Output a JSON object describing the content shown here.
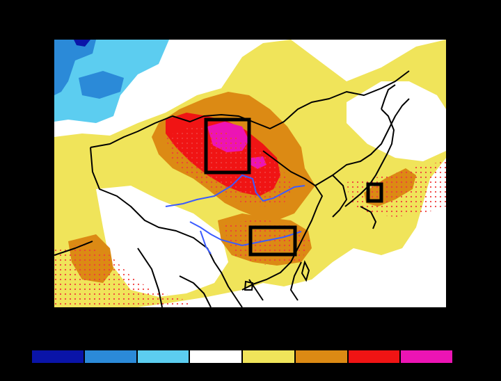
{
  "map": {
    "region": "East Asia",
    "colors": {
      "anomaly_levels": [
        "#0a14a8",
        "#2b8ad8",
        "#5ccdf0",
        "#ffffff",
        "#f0e45a",
        "#dc8a14",
        "#f01414",
        "#ec14b4"
      ],
      "coast_border": "#000000",
      "river": "#3b5bff",
      "stipple": "#f03c3c",
      "highlight_box": "#000000"
    },
    "highlight_boxes": [
      "north-china-box",
      "south-china-box",
      "japan-box"
    ],
    "rivers": [
      "yellow-river",
      "yangtze-river"
    ]
  },
  "colorbar": {
    "levels": 8
  }
}
